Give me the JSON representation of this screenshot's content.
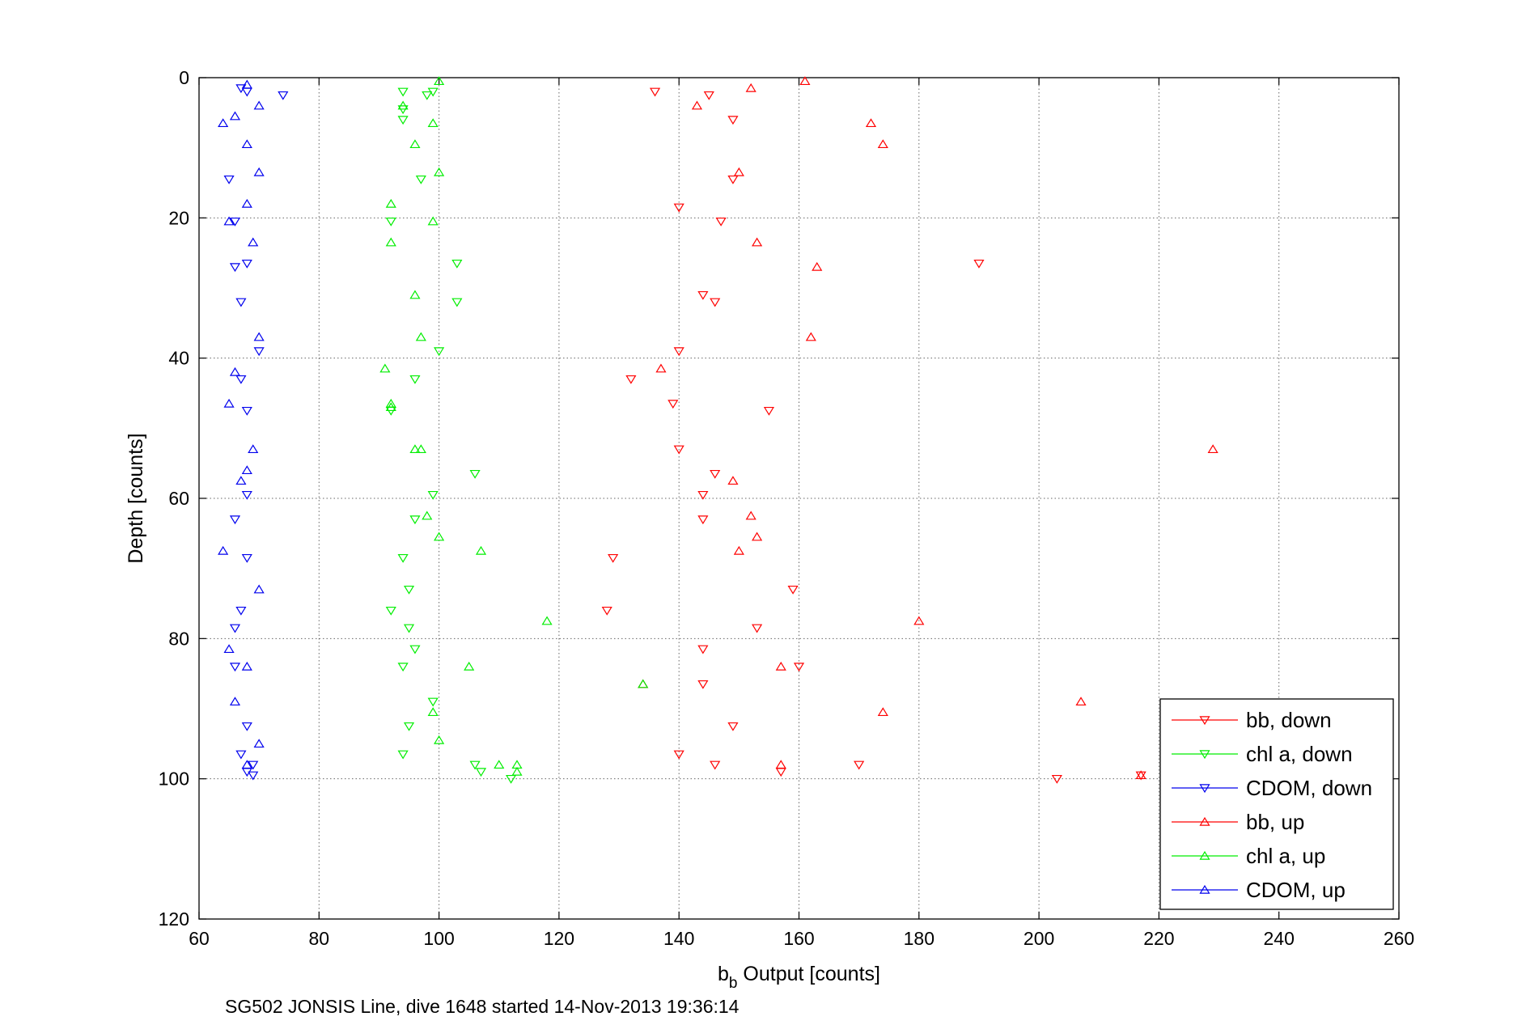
{
  "chart_data": {
    "type": "scatter",
    "xlabel_main": "b",
    "xlabel_sub": "b",
    "xlabel_rest": " Output [counts]",
    "ylabel": "Depth [counts]",
    "footer": "SG502 JONSIS Line, dive 1648 started 14-Nov-2013 19:36:14",
    "xlim": [
      60,
      260
    ],
    "ylim": [
      0,
      120
    ],
    "y_reversed": true,
    "grid": true,
    "legend_placement": "bottom-right",
    "x_ticks": [
      "60",
      "80",
      "100",
      "120",
      "140",
      "160",
      "180",
      "200",
      "220",
      "240",
      "260"
    ],
    "y_ticks": [
      "0",
      "20",
      "40",
      "60",
      "80",
      "100",
      "120"
    ],
    "series": [
      {
        "name": "bb, down",
        "color": "#ff0000",
        "marker": "triangle-down",
        "x": [
          136,
          145,
          149,
          149,
          140,
          147,
          190,
          144,
          146,
          140,
          132,
          139,
          155,
          140,
          146,
          144,
          144,
          129,
          128,
          159,
          153,
          144,
          160,
          144,
          149,
          140,
          146,
          170,
          157,
          203,
          217
        ],
        "y": [
          2,
          2.5,
          6,
          14.5,
          18.5,
          20.5,
          26.5,
          31,
          32,
          39,
          43,
          46.5,
          47.5,
          53,
          56.5,
          59.5,
          63,
          68.5,
          76,
          73,
          78.5,
          81.5,
          84,
          86.5,
          92.5,
          96.5,
          98,
          98,
          99,
          100,
          99.5
        ]
      },
      {
        "name": "chl a, down",
        "color": "#00ee00",
        "marker": "triangle-down",
        "x": [
          94,
          98,
          99,
          94,
          94,
          97,
          92,
          103,
          103,
          100,
          96,
          92,
          106,
          99,
          96,
          94,
          95,
          92,
          95,
          96,
          94,
          99,
          95,
          94,
          106,
          107,
          112
        ],
        "y": [
          2,
          2.5,
          2,
          4.5,
          6,
          14.5,
          20.5,
          26.5,
          32,
          39,
          43,
          47.5,
          56.5,
          59.5,
          63,
          68.5,
          73,
          76,
          78.5,
          81.5,
          84,
          89,
          92.5,
          96.5,
          98,
          99,
          100
        ]
      },
      {
        "name": "CDOM, down",
        "color": "#0000ee",
        "marker": "triangle-down",
        "x": [
          67,
          68,
          74,
          65,
          66,
          68,
          66,
          67,
          70,
          67,
          68,
          66,
          67,
          68,
          68,
          66,
          66,
          68,
          67,
          69,
          68,
          69
        ],
        "y": [
          1.5,
          2,
          2.5,
          14.5,
          20.5,
          26.5,
          27,
          32,
          39,
          43,
          47.5,
          63,
          76,
          59.5,
          68.5,
          78.5,
          84,
          92.5,
          96.5,
          98,
          99,
          99.5
        ]
      },
      {
        "name": "bb, up",
        "color": "#ff0000",
        "marker": "triangle-up",
        "x": [
          161,
          152,
          143,
          172,
          174,
          150,
          153,
          163,
          162,
          137,
          229,
          149,
          152,
          153,
          150,
          180,
          157,
          134,
          207,
          174,
          157,
          217
        ],
        "y": [
          0.5,
          1.5,
          4,
          6.5,
          9.5,
          13.5,
          23.5,
          27,
          37,
          41.5,
          53,
          57.5,
          62.5,
          65.5,
          67.5,
          77.5,
          84,
          86.5,
          89,
          90.5,
          98,
          99.5
        ]
      },
      {
        "name": "chl a, up",
        "color": "#00ee00",
        "marker": "triangle-up",
        "x": [
          100,
          94,
          99,
          96,
          100,
          92,
          99,
          92,
          92,
          96,
          97,
          91,
          92,
          96,
          97,
          107,
          98,
          100,
          118,
          105,
          134,
          99,
          100,
          113,
          110,
          113
        ],
        "y": [
          0.5,
          4,
          6.5,
          9.5,
          13.5,
          18,
          20.5,
          23.5,
          47,
          31,
          37,
          41.5,
          46.5,
          53,
          53,
          67.5,
          62.5,
          65.5,
          77.5,
          84,
          86.5,
          90.5,
          94.5,
          98,
          98,
          99
        ]
      },
      {
        "name": "CDOM, up",
        "color": "#0000ee",
        "marker": "triangle-up",
        "x": [
          68,
          70,
          66,
          64,
          68,
          70,
          68,
          65,
          69,
          70,
          66,
          65,
          69,
          68,
          67,
          64,
          70,
          65,
          68,
          66,
          70,
          68
        ],
        "y": [
          1,
          4,
          5.5,
          6.5,
          9.5,
          13.5,
          18,
          20.5,
          23.5,
          37,
          42,
          46.5,
          53,
          56,
          57.5,
          67.5,
          73,
          81.5,
          84,
          89,
          95,
          98
        ]
      }
    ]
  }
}
